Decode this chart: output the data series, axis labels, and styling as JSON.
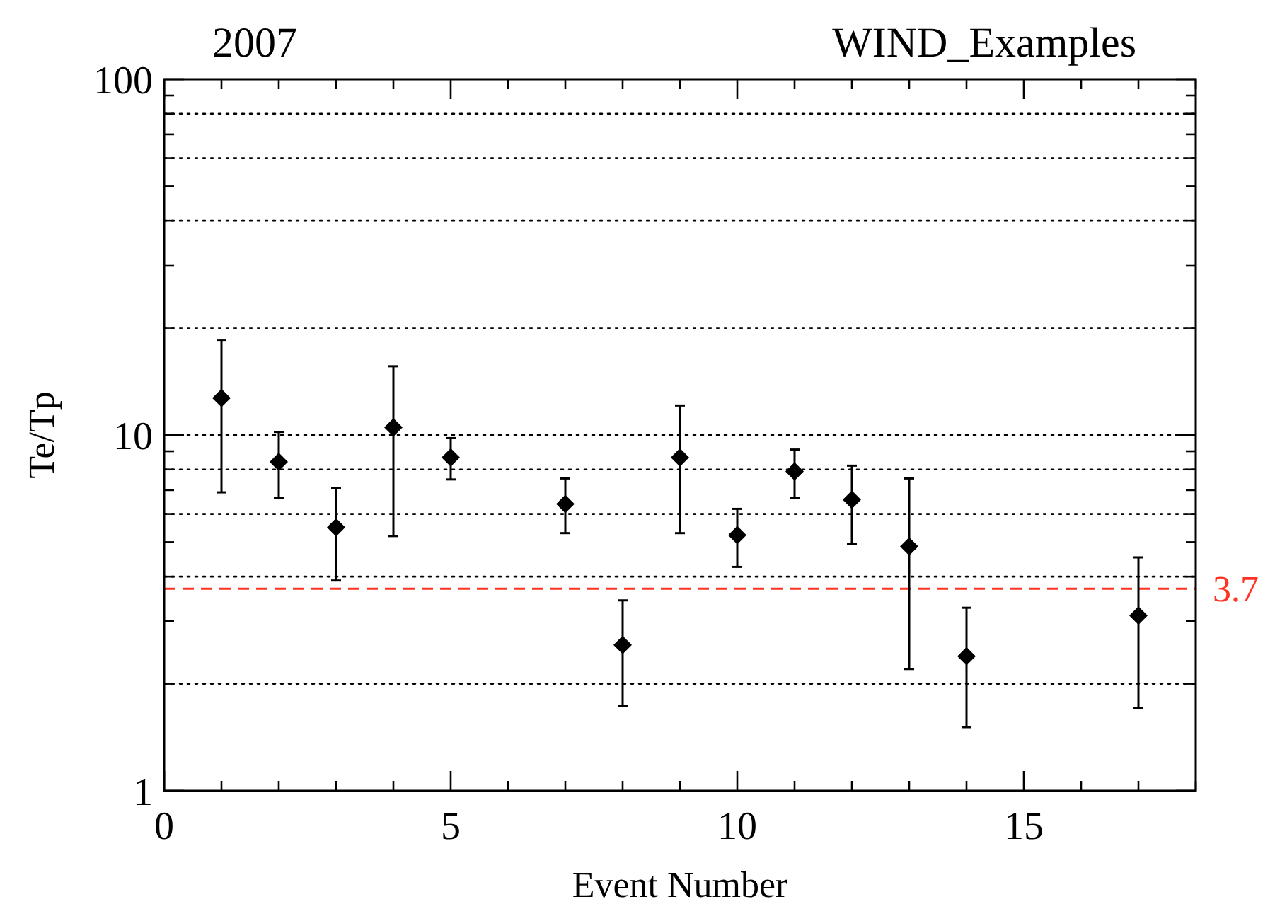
{
  "chart_data": {
    "type": "scatter",
    "title": "2007",
    "subtitle": "WIND_Examples",
    "xlabel": "Event Number",
    "ylabel": "Te/Tp",
    "x": [
      1,
      2,
      3,
      4,
      5,
      7,
      8,
      9,
      10,
      11,
      12,
      13,
      14,
      17
    ],
    "values": [
      12.7,
      8.4,
      5.5,
      10.5,
      8.65,
      6.4,
      2.57,
      8.65,
      5.23,
      7.9,
      6.58,
      4.86,
      2.39,
      3.11
    ],
    "errors": [
      [
        6.9,
        18.5
      ],
      [
        6.65,
        10.2
      ],
      [
        3.9,
        7.1
      ],
      [
        5.2,
        15.6
      ],
      [
        7.5,
        9.8
      ],
      [
        5.3,
        7.55
      ],
      [
        1.73,
        3.43
      ],
      [
        5.3,
        12.1
      ],
      [
        4.26,
        6.2
      ],
      [
        6.65,
        9.1
      ],
      [
        4.93,
        8.2
      ],
      [
        2.2,
        7.55
      ],
      [
        1.51,
        3.27
      ],
      [
        1.71,
        4.53
      ]
    ],
    "color": "#000000",
    "marker": "diamond",
    "log": "y",
    "xlim": [
      0,
      18
    ],
    "xticks": [
      0,
      {
        "value": 1,
        "label": null
      },
      {
        "value": 2,
        "label": null
      },
      {
        "value": 3,
        "label": null
      },
      {
        "value": 4,
        "label": null
      },
      5,
      {
        "value": 6,
        "label": null
      },
      {
        "value": 7,
        "label": null
      },
      {
        "value": 8,
        "label": null
      },
      {
        "value": 9,
        "label": null
      },
      10,
      {
        "value": 11,
        "label": null
      },
      {
        "value": 12,
        "label": null
      },
      {
        "value": 13,
        "label": null
      },
      {
        "value": 14,
        "label": null
      },
      15,
      {
        "value": 16,
        "label": null
      },
      {
        "value": 17,
        "label": null
      },
      {
        "value": 18,
        "label": null
      }
    ],
    "ylim": [
      1,
      100
    ],
    "yticks": [
      1,
      {
        "value": 2,
        "label": null
      },
      {
        "value": 3,
        "label": null
      },
      {
        "value": 4,
        "label": null
      },
      {
        "value": 5,
        "label": null
      },
      {
        "value": 6,
        "label": null
      },
      {
        "value": 7,
        "label": null
      },
      {
        "value": 8,
        "label": null
      },
      {
        "value": 9,
        "label": null
      },
      10,
      {
        "value": 20,
        "label": null
      },
      {
        "value": 30,
        "label": null
      },
      {
        "value": 40,
        "label": null
      },
      {
        "value": 50,
        "label": null
      },
      {
        "value": 60,
        "label": null
      },
      {
        "value": 70,
        "label": null
      },
      {
        "value": 80,
        "label": null
      },
      {
        "value": 90,
        "label": null
      },
      100
    ],
    "ref_lines": [
      {
        "axis": "y",
        "value": 2,
        "label": null,
        "color": "#000000",
        "line_style": "dotted"
      },
      {
        "axis": "y",
        "value": 4,
        "label": null,
        "color": "#000000",
        "line_style": "dotted"
      },
      {
        "axis": "y",
        "value": 6,
        "label": null,
        "color": "#000000",
        "line_style": "dotted"
      },
      {
        "axis": "y",
        "value": 8,
        "label": null,
        "color": "#000000",
        "line_style": "dotted"
      },
      {
        "axis": "y",
        "value": 10,
        "label": null,
        "color": "#000000",
        "line_style": "dotted"
      },
      {
        "axis": "y",
        "value": 20,
        "label": null,
        "color": "#000000",
        "line_style": "dotted"
      },
      {
        "axis": "y",
        "value": 40,
        "label": null,
        "color": "#000000",
        "line_style": "dotted"
      },
      {
        "axis": "y",
        "value": 60,
        "label": null,
        "color": "#000000",
        "line_style": "dotted"
      },
      {
        "axis": "y",
        "value": 80,
        "label": null,
        "color": "#000000",
        "line_style": "dotted"
      },
      {
        "axis": "y",
        "value": 3.7,
        "label": "3.7",
        "color": "#ff3322",
        "line_style": "dashed"
      }
    ]
  }
}
